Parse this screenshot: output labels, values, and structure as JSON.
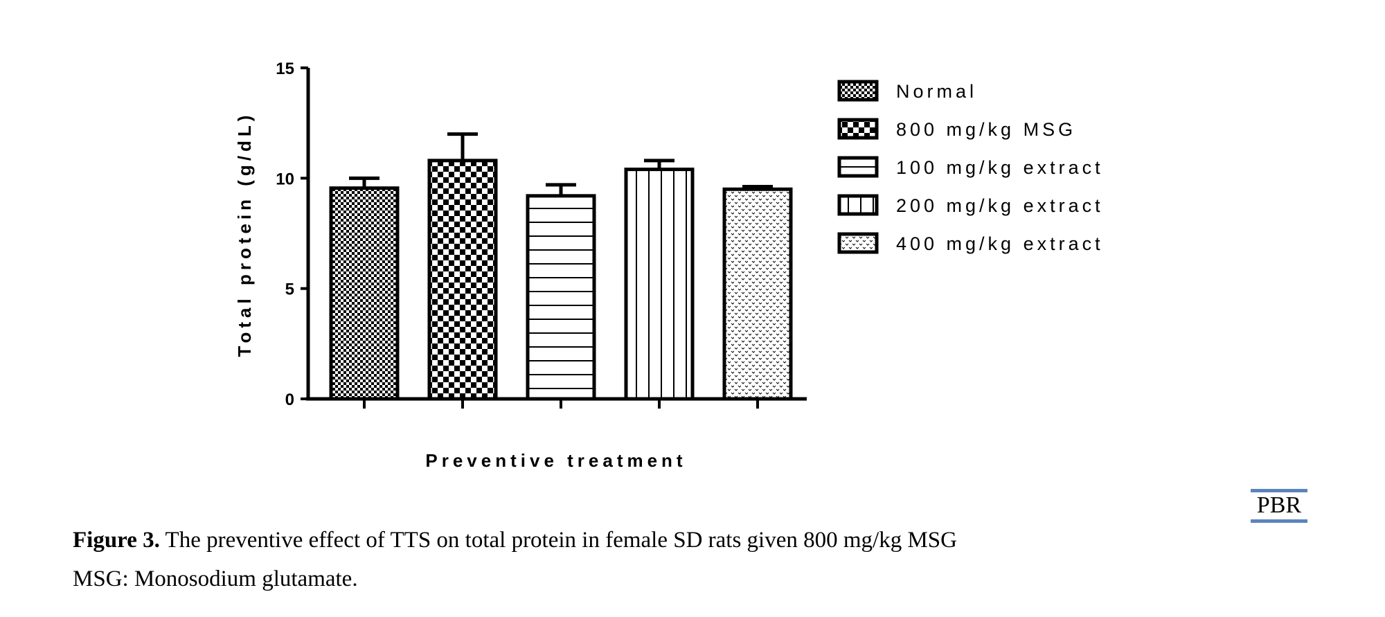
{
  "chart_data": {
    "type": "bar",
    "categories": [
      "Normal",
      "800 mg/kg MSG",
      "100 mg/kg extract",
      "200 mg/kg extract",
      "400 mg/kg extract"
    ],
    "values": [
      9.55,
      10.8,
      9.2,
      10.4,
      9.5
    ],
    "errors": [
      0.45,
      1.2,
      0.5,
      0.4,
      0.12
    ],
    "patterns": [
      "fine-checker",
      "coarse-checker",
      "horizontal-lines",
      "vertical-lines",
      "dots"
    ],
    "xlabel": "Preventive treatment",
    "ylabel": "Total protein (g/dL)",
    "ylim": [
      0,
      15
    ],
    "yticks": [
      "0",
      "5",
      "10",
      "15"
    ],
    "legend": {
      "position": "right",
      "entries": [
        "Normal",
        "800 mg/kg MSG",
        "100 mg/kg extract",
        "200 mg/kg extract",
        "400 mg/kg extract"
      ]
    },
    "grid": false
  },
  "caption": {
    "label": "Figure 3.",
    "text": " The preventive effect of TTS on total protein in female SD rats given 800 mg/kg MSG",
    "note": "MSG: Monosodium glutamate."
  },
  "logo": {
    "text": "PBR",
    "color": "#5b84bd"
  }
}
